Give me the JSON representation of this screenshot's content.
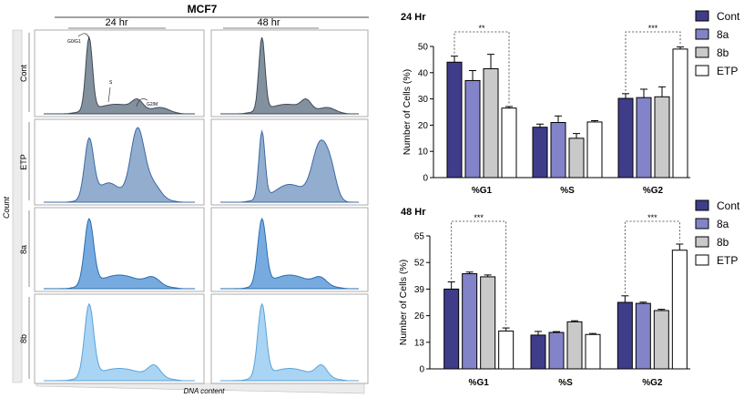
{
  "figure": {
    "cell_line": "MCF7",
    "time_24": "24 hr",
    "time_48": "48 hr",
    "rows": [
      "Cont",
      "ETP",
      "8a",
      "8b"
    ],
    "y_label": "Count",
    "x_label": "DNA content",
    "phase_labels": [
      "G0/G1",
      "S",
      "G2/M"
    ],
    "colors": {
      "row_fill": [
        "#5a6b7d",
        "#6f92bd",
        "#4a8fd6",
        "#8cc5ef"
      ],
      "row_stroke": [
        "#3d4a58",
        "#3d6aa3",
        "#2b6cb0",
        "#5aa3d8"
      ],
      "cont": "#3f3d8a",
      "8a": "#8383c9",
      "8b": "#c9c9c9",
      "etp": "#ffffff"
    }
  },
  "chart_data": [
    {
      "type": "bar",
      "title": "24 Hr",
      "ylabel": "Number of Cells (%)",
      "xlabel": "",
      "ylim": [
        0,
        50
      ],
      "yticks": [
        0,
        10,
        20,
        30,
        40,
        50
      ],
      "categories": [
        "%G1",
        "%S",
        "%G2"
      ],
      "series": [
        {
          "name": "Cont",
          "values": [
            44,
            19.2,
            30.2
          ],
          "errors": [
            2.3,
            1.2,
            1.8
          ]
        },
        {
          "name": "8a",
          "values": [
            37,
            21,
            30.5
          ],
          "errors": [
            3.8,
            2.5,
            3.2
          ]
        },
        {
          "name": "8b",
          "values": [
            41.5,
            15,
            30.8
          ],
          "errors": [
            5.5,
            1.8,
            3.8
          ]
        },
        {
          "name": "ETP",
          "values": [
            26.5,
            21.2,
            49
          ],
          "errors": [
            0.6,
            0.5,
            0.8
          ]
        }
      ],
      "significance": [
        "**",
        "***"
      ],
      "legend_position": "right"
    },
    {
      "type": "bar",
      "title": "48 Hr",
      "ylabel": "Number of Cells (%)",
      "xlabel": "",
      "ylim": [
        0,
        65
      ],
      "yticks": [
        0,
        13,
        26,
        39,
        52,
        65
      ],
      "categories": [
        "%G1",
        "%S",
        "%G2"
      ],
      "series": [
        {
          "name": "Cont",
          "values": [
            39,
            16.5,
            32.5
          ],
          "errors": [
            3.5,
            1.8,
            3.2
          ]
        },
        {
          "name": "8a",
          "values": [
            46.5,
            17.8,
            32
          ],
          "errors": [
            0.8,
            0.4,
            0.6
          ]
        },
        {
          "name": "8b",
          "values": [
            45,
            23,
            28.5
          ],
          "errors": [
            0.9,
            0.5,
            0.6
          ]
        },
        {
          "name": "ETP",
          "values": [
            18.5,
            16.8,
            58
          ],
          "errors": [
            1.5,
            0.5,
            3
          ]
        }
      ],
      "significance": [
        "***",
        "***"
      ],
      "legend_position": "right"
    }
  ]
}
